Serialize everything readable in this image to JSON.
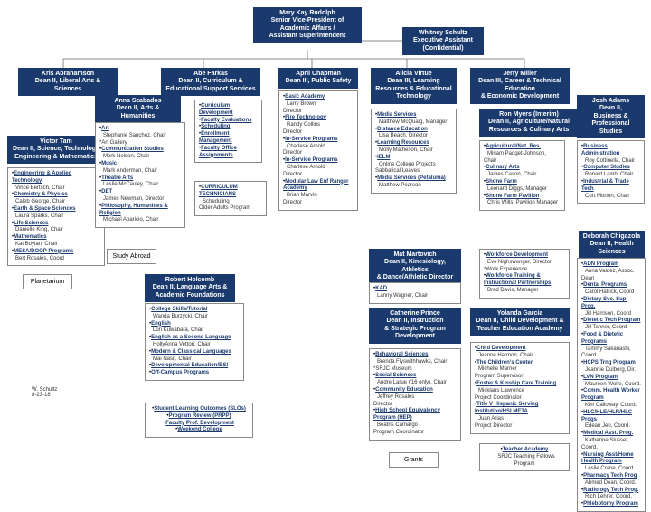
{
  "colors": {
    "box_bg": "#1a3a6e",
    "box_fg": "#ffffff",
    "border": "#888888"
  },
  "top": {
    "svp": "Mary Kay Rudolph\nSenior Vice-President of\nAcademic Affairs /\nAssistant Superintendent",
    "exec": "Whitney Schultz\nExecutive Assistant\n(Confidential)"
  },
  "deans": {
    "d1": "Kris Abrahamson\nDean II, Liberal Arts & Sciences",
    "d2": "Abe Farkas\nDean II, Curriculum &\nEducational Support Services",
    "d3": "April Chapman\nDean III, Public Safety",
    "d4": "Alicia Virtue\nDean III, Learning\nResources & Educational\nTechnology",
    "d5": "Jerry Miller\nDean III, Career & Technical\nEducation\n& Economic Development",
    "anna": "Anna Szabados\nDean II, Arts & Humanities",
    "victor": "Victor Tam\nDean II, Science, Technology\nEngineering & Mathematics",
    "ron": "Ron Myers (Interim)\nDean II, Agriculture/Natural\nResources & Culinary Arts",
    "josh": "Josh Adams\nDean II,\nBusiness & Professional\nStudies",
    "robert": "Robert Holcomb\nDean II, Language Arts &\nAcademic Foundations",
    "mat": "Mat Martovich\nDean II, Kinesiology, Athletics\n& Dance/Athletic Director",
    "catherine": "Catherine Prince\nDean II, Instruction\n& Strategic Program\nDevelopment",
    "yolanda": "Yolanda Garcia\nDean II, Child Development &\nTeacher Education Academy",
    "deborah": "Deborah Chigazola\nDean II, Health Sciences"
  },
  "misc": {
    "planetarium": "Planetarium",
    "study_abroad": "Study Abroad",
    "grants": "Grants",
    "author": "W. Schultz\n8-23-18"
  },
  "lists": {
    "victor": [
      {
        "h": "Engineering & Applied Technology",
        "s": "Vince Bertsch, Chair"
      },
      {
        "h": "Chemistry & Physics",
        "s": "Caleb George, Chair"
      },
      {
        "h": "Earth & Space Sciences",
        "s": "Laura Sparks, Chair"
      },
      {
        "h": "Life Sciences",
        "s": "Danielle King, Chair"
      },
      {
        "h": "Mathematics",
        "s": "Kat Boylan, Chair"
      },
      {
        "h": "MESA/DOOP Programs",
        "s": "Bert Rosales, Coord"
      }
    ],
    "anna": [
      {
        "h": "Art",
        "s": "Stephanie Sanchez, Chair\n*Art Gallery"
      },
      {
        "h": "Communication Studies",
        "s": "Mark Nelson, Chair"
      },
      {
        "h": "Music",
        "s": "Mark Anderman, Chair"
      },
      {
        "h": "Theatre Arts",
        "s": "Leslie McCauley, Chair"
      },
      {
        "h": "DET",
        "s": "James Newman, Director"
      },
      {
        "h": "Philosophy, Humanities & Religion",
        "s": "Michael Aparicio, Chair"
      }
    ],
    "curric": [
      {
        "h": "Curriculum Development"
      },
      {
        "h": "Faculty Evaluations"
      },
      {
        "h": "Scheduling"
      },
      {
        "h": "Enrollment Management"
      },
      {
        "h": "Faculty Office Assignments"
      }
    ],
    "curric2": [
      {
        "h": "CURRICULUM TECHNICIANS",
        "s": "Scheduling\nOlder Adults Program"
      }
    ],
    "april": [
      {
        "h": "Basic Academy",
        "s": "Larry Brown\nDirector"
      },
      {
        "h": "Fire Technology",
        "s": "Randy Collins\nDirector"
      },
      {
        "h": "In-Service Programs",
        "s": "Charlese Arnold\nDirector"
      },
      {
        "h": "In-Service Programs",
        "s": "Charlese Arnold\nDirector"
      },
      {
        "h": "Modular Law Enf Ranger Academy",
        "s": "Brian Marvin\nDirector"
      }
    ],
    "alicia": [
      {
        "h": "Media Services",
        "s": "Matthew McQuaig, Manager"
      },
      {
        "h": "Distance Education",
        "s": "Lisa Beach, Director"
      },
      {
        "h": "Learning Resources",
        "s": "Molly Matheson, Chair"
      },
      {
        "h": "IELM",
        "s": "Online College Projects\nSabbatical Leaves"
      },
      {
        "h": "Media Services (Petaluma)",
        "s": "Matthew Pearson"
      }
    ],
    "ron_list": [
      {
        "h": "Agricultural/Nat. Res.",
        "s": "Miriam Padget-Johnson, Chair"
      },
      {
        "h": "Culinary Arts",
        "s": "James Cason, Chair"
      },
      {
        "h": "Shone Farm",
        "s": "Leonard Diggs, Manager"
      },
      {
        "h": "Shone Farm Pavilion",
        "s": "Chris Wills, Pavilion Manager"
      }
    ],
    "josh_list": [
      {
        "h": "Business Administration",
        "s": "Roy Cottinella, Chair"
      },
      {
        "h": "Computer Studies",
        "s": "Ronald Lamb, Chair"
      },
      {
        "h": "Industrial & Trade Tech",
        "s": "Curt Morton, Chair"
      }
    ],
    "robert_list": [
      {
        "h": "College Skills/Tutorial",
        "s": "Wanda Burzycki, Chair"
      },
      {
        "h": "English",
        "s": "Lori Kuwabara, Chair"
      },
      {
        "h": "English as a Second Language",
        "s": "HollyAnna Vettori, Chair"
      },
      {
        "h": "Modern & Classical Languages",
        "s": "Mai Nasif, Chair"
      },
      {
        "h": "Developmental Education/BSI"
      },
      {
        "h": "Off-Campus Programs"
      }
    ],
    "slo": [
      {
        "h": "Student Learning Outcomes (SLOs)"
      },
      {
        "h": "Program Review (PRPP)"
      },
      {
        "h": "Faculty Prof. Development"
      },
      {
        "h": "Weekend College"
      }
    ],
    "mat_list": [
      {
        "h": "KAD",
        "s": "Lanny Wagner, Chair"
      }
    ],
    "catherine_list": [
      {
        "h": "Behavioral Sciences",
        "s": "Brenda Flyswithhawks, Chair\n*SRJC Museum"
      },
      {
        "h": "Social Sciences",
        "s": "Andre Larue ('16 only), Chair"
      },
      {
        "h": "Community Education",
        "s": "Jeffrey Rosales\nDirector"
      },
      {
        "h": "High School Equivalency Program (HEP)",
        "s": "Beatris Camargo\nProgram Coordinator"
      }
    ],
    "wfd": [
      {
        "h": "Workforce Development",
        "s": "Eve Nighswonger, Director\n*Work Experience"
      },
      {
        "h": "Workforce Training & Instructional Partnerships",
        "s": "Brad Davis, Manager"
      }
    ],
    "yolanda_list": [
      {
        "h": "Child Development",
        "s": "Jeanne Harmon, Chair"
      },
      {
        "h": "The Children's Center",
        "s": "Michelle Marner\nProgram Supervisor"
      },
      {
        "h": "Foster & Kinship Care Training",
        "s": "Micklaus Lawrence\nProject Coordinator"
      },
      {
        "h": "Title V Hispanic Serving Institution/HSI META",
        "s": "Juan Arias\nProject Director"
      }
    ],
    "teacher": [
      {
        "h": "Teacher Academy",
        "s": "SRJC Teaching Fellows Program"
      }
    ],
    "deborah_list": [
      {
        "h": "ADN Program",
        "s": "Anna Valdez, Assoc. Dean"
      },
      {
        "h": "Dental Programs",
        "s": "Carol Hatrick, Coord"
      },
      {
        "h": "Dietary Svc. Sup. Prog.",
        "s": "Jill Harrison, Coord"
      },
      {
        "h": "Dietetic Tech Program",
        "s": "Jill Tanner, Coord"
      },
      {
        "h": "Food & Dietetic Programs",
        "s": "Tammy Sakanashi, Coord."
      },
      {
        "h": "HCPS Trng Program",
        "s": "Jeannie Dulberg, Dir."
      },
      {
        "h": "LVN Program",
        "s": "Maureen Wolfe, Coord."
      },
      {
        "h": "Comm. Health Worker Program",
        "s": "Kim Calloway, Coord."
      },
      {
        "h": "HLC/HLE/HLR/HLC Progs",
        "s": "Edean Jen, Coord."
      },
      {
        "h": "Medical Asst. Prog.",
        "s": "Katherine Slusser, Coord."
      },
      {
        "h": "Nursing Asst/Home Health Program",
        "s": "Leslie Crane, Coord."
      },
      {
        "h": "Pharmacy Tech Prog",
        "s": "Ahmed Dean, Coord."
      },
      {
        "h": "Radiology Tech Prog.",
        "s": "Rich Lehrer, Coord."
      },
      {
        "h": "Phlebotomy Program"
      }
    ]
  }
}
